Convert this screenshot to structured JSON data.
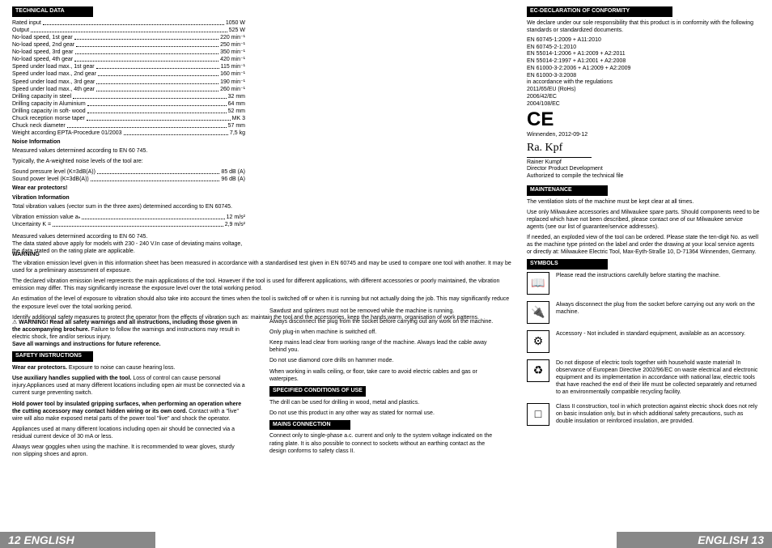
{
  "leftCol": {
    "techHeader": "TECHNICAL DATA",
    "techRows": [
      {
        "label": "Rated input",
        "value": "1050 W"
      },
      {
        "label": "Output",
        "value": "525 W"
      },
      {
        "label": "No-load speed, 1st gear",
        "value": "220 min⁻¹"
      },
      {
        "label": "No-load speed, 2nd gear",
        "value": "250 min⁻¹"
      },
      {
        "label": "No-load speed, 3rd gear",
        "value": "350 min⁻¹"
      },
      {
        "label": "No-load speed, 4th gear",
        "value": "420 min⁻¹"
      },
      {
        "label": "Speed under load max., 1st gear",
        "value": "115 min⁻¹"
      },
      {
        "label": "Speed under load max., 2nd gear",
        "value": "160 min⁻¹"
      },
      {
        "label": "Speed under load max., 3rd gear",
        "value": "190 min⁻¹"
      },
      {
        "label": "Speed under load max., 4th gear",
        "value": "260 min⁻¹"
      },
      {
        "label": "Drilling capacity in steel",
        "value": "32 mm"
      },
      {
        "label": "Drilling capacity in Aluminium",
        "value": "64 mm"
      },
      {
        "label": "Drilling capacity in soft- wood",
        "value": "52 mm"
      },
      {
        "label": "Chuck reception morse taper",
        "value": "MK 3"
      },
      {
        "label": "Chuck neck diameter",
        "value": "57 mm"
      },
      {
        "label": "Weight according EPTA-Procedure 01/2003",
        "value": "7,5 kg"
      }
    ],
    "noiseHeading": "Noise Information",
    "noiseText": "Measured values determined according to EN 60 745.",
    "noiseTypical": "Typically, the A-weighted noise levels of the tool are:",
    "noiseRows": [
      {
        "label": "  Sound pressure level (K=3dB(A))",
        "value": "85 dB (A)"
      },
      {
        "label": "  Sound power level (K=3dB(A))",
        "value": "96 dB (A)"
      }
    ],
    "wearEar": "Wear ear protectors!",
    "vibHeading": "Vibration Information",
    "vibText": "Total vibration values (vector sum in the three axes) determined according to EN 60745.",
    "vibRows": [
      {
        "label": "  Vibration emission value aₕ",
        "value": "12 m/s²"
      },
      {
        "label": "  Uncertainty K =",
        "value": "2,9 m/s²"
      }
    ],
    "measuredNote": "Measured values determined according to EN 60 745.\nThe data stated above apply for models with 230 - 240 V.In case of deviating mains voltage, the data stated on the rating plate are applicable.",
    "warningBlock": {
      "title": "WARNING! Read all safety warnings and all instructions, including those given in the accompanying brochure.",
      "text": " Failure to follow the warnings and instructions may result in electric shock, fire and/or serious injury.",
      "save": "Save all warnings and instructions for future reference."
    },
    "safetyHeader": "SAFETY INSTRUCTIONS",
    "safety": [
      {
        "bold": "Wear ear protectors.",
        "text": " Exposure to noise can cause hearing loss."
      },
      {
        "bold": "Use auxiliary handles supplied with the tool.",
        "text": " Loss of control can cause personal injury.Appliances used at many different locations including open air must be connected via a current surge preventing switch."
      },
      {
        "bold": "Hold power tool by insulated gripping surfaces, when performing an operation where the cutting accessory may contact hidden wiring or its own cord.",
        "text": " Contact with a \"live\" wire will also make exposed metal parts of the power tool \"live\" and shock the operator."
      },
      {
        "bold": "",
        "text": "Appliances used at many different locations including open air should be connected via a residual current device of 30 mA or less."
      },
      {
        "bold": "",
        "text": "Always wear goggles when using the machine. It is recommended to wear gloves, sturdy non slipping shoes and apron."
      }
    ]
  },
  "wide": {
    "warningTitle": "WARNING",
    "p1": "The vibration emission level given in this information sheet has been measured in accordance with a standardised test given in EN 60745 and may be used to compare one tool with another. It may be used for a preliminary assessment of exposure.",
    "p2": "The declared vibration emission level represents the main applications of the tool. However if the tool is used for different applications, with different accessories or poorly maintained, the vibration emission may differ. This may significantly increase the exposure level over the total working period.",
    "p3": "An estimation of the level of exposure to vibration should also take into account the times when the tool is switched off or when it is running but not actually doing the job. This may significantly reduce the exposure level over the total working period.",
    "p4": "Identify additional safety measures to protect the operator from the effects of vibration such as: maintain the tool and the accessories, keep the hands warm, organisation of work patterns."
  },
  "midCol": {
    "lines": [
      "Sawdust and splinters must not be removed while the machine is running.",
      "Always disconnect the plug from the socket before carrying out any work on the machine.",
      "Only plug-in when machine is switched off.",
      "Keep mains lead clear from working range of the machine. Always lead the cable away behind you.",
      "Do not use diamond core drills on hammer mode.",
      "When working in walls ceiling, or floor, take care to avoid electric cables and gas or waterpipes."
    ],
    "condHeader": "SPECIFIED CONDITIONS OF USE",
    "condText": "The drill can be used for drilling in wood, metal and plastics.",
    "condText2": "Do not use this product in any other way as stated for normal use.",
    "mainsHeader": "MAINS CONNECTION",
    "mainsText": "Connect only to single-phase a.c. current and only to the system voltage indicated on the rating plate. It is also possible to connect to sockets without an earthing contact as the design conforms to safety class II."
  },
  "rightCol": {
    "ecHeader": "EC-DECLARATION OF CONFORMITY",
    "ecText": "We declare under our sole responsibility that this product is in conformity with the following standards or standardized documents.",
    "standards": [
      "EN 60745-1:2009 + A11:2010",
      "EN 60745-2-1:2010",
      "EN 55014-1:2006 + A1:2009 + A2:2011",
      "EN 55014-2:1997 + A1:2001 + A2:2008",
      "EN 61000-3-2:2006 + A1:2009 + A2:2009",
      "EN 61000-3-3:2008"
    ],
    "accord": "in accordance with the regulations",
    "regs": [
      "2011/65/EU (RoHs)",
      "2006/42/EC",
      "2004/108/EC"
    ],
    "place": "Winnenden, 2012-09-12",
    "name": "Rainer Kumpf",
    "title": "Director Product Development",
    "auth": "Authorized to compile the technical file",
    "maintHeader": "MAINTENANCE",
    "maintText": "The ventilation slots of the machine must be kept clear at all times.",
    "maintText2": "Use only Milwaukee accessories and Milwaukee spare parts. Should components need to be replaced which have not been described, please contact one of our Milwaukee service agents (see our list of guarantee/service addresses).",
    "maintText3": "If needed, an exploded view of the tool can be ordered. Please state the ten-digit No. as well as the machine type printed on the label and order the drawing at your local service agents or directly at: Milwaukee Electric Tool, Max-Eyth-Straße 10, D-71364 Winnenden, Germany.",
    "symbolsHeader": "SYMBOLS",
    "symbols": [
      {
        "icon": "📖",
        "text": "Please read the instructions carefully before starting the machine."
      },
      {
        "icon": "🔌",
        "text": "Always disconnect the plug from the socket before carrying out any work on the machine."
      },
      {
        "icon": "⚙",
        "text": "Accessory - Not included in standard equipment, available as an accessory."
      },
      {
        "icon": "♻",
        "text": "Do not dispose of electric tools together with household waste material! In observance of European Directive 2002/96/EC on waste electrical and electronic equipment and its implementation in accordance with national law, electric tools that have reached the end of their life must be collected separately and returned to an environmentally compatible recycling facility."
      },
      {
        "icon": "□",
        "text": "Class II construction, tool in which protection against electric shock does not rely on basic insulation only, but in which additional safety precautions, such as double insulation or reinforced insulation, are provided."
      }
    ]
  },
  "footer": {
    "left": "12  ENGLISH",
    "right": "ENGLISH  13"
  }
}
